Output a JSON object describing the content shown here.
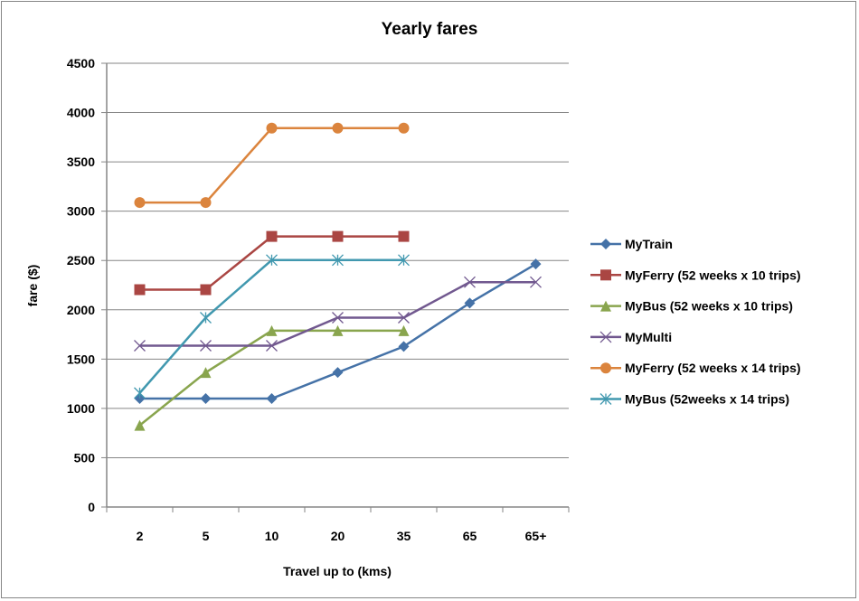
{
  "chart_data": {
    "type": "line",
    "title": "Yearly fares",
    "xlabel": "Travel up to (kms)",
    "ylabel": "fare ($)",
    "categories": [
      "2",
      "5",
      "10",
      "20",
      "35",
      "65",
      "65+"
    ],
    "ylim": [
      0,
      4500
    ],
    "yticks": [
      0,
      500,
      1000,
      1500,
      2000,
      2500,
      3000,
      3500,
      4000,
      4500
    ],
    "grid": true,
    "legend_position": "right",
    "series": [
      {
        "name": "MyTrain",
        "color": "#4572A7",
        "marker": "diamond",
        "values": [
          1100,
          1100,
          1100,
          1364,
          1628,
          2068,
          2464
        ]
      },
      {
        "name": "MyFerry (52 weeks x 10 trips)",
        "color": "#AA4643",
        "marker": "square",
        "values": [
          2204,
          2204,
          2744,
          2744,
          2744,
          null,
          null
        ]
      },
      {
        "name": "MyBus (52 weeks x 10 trips)",
        "color": "#89A54E",
        "marker": "triangle",
        "values": [
          828,
          1364,
          1788,
          1788,
          1788,
          null,
          null
        ]
      },
      {
        "name": "MyMulti",
        "color": "#71588F",
        "marker": "x",
        "values": [
          1636,
          1636,
          1636,
          1920,
          1920,
          2280,
          2280
        ]
      },
      {
        "name": "MyFerry (52 weeks x 14 trips)",
        "color": "#DB843D",
        "marker": "circle",
        "values": [
          3088,
          3088,
          3842,
          3842,
          3842,
          null,
          null
        ]
      },
      {
        "name": "MyBus (52weeks x 14 trips)",
        "color": "#4198AF",
        "marker": "star",
        "values": [
          1156,
          1920,
          2504,
          2504,
          2504,
          null,
          null
        ]
      }
    ]
  }
}
